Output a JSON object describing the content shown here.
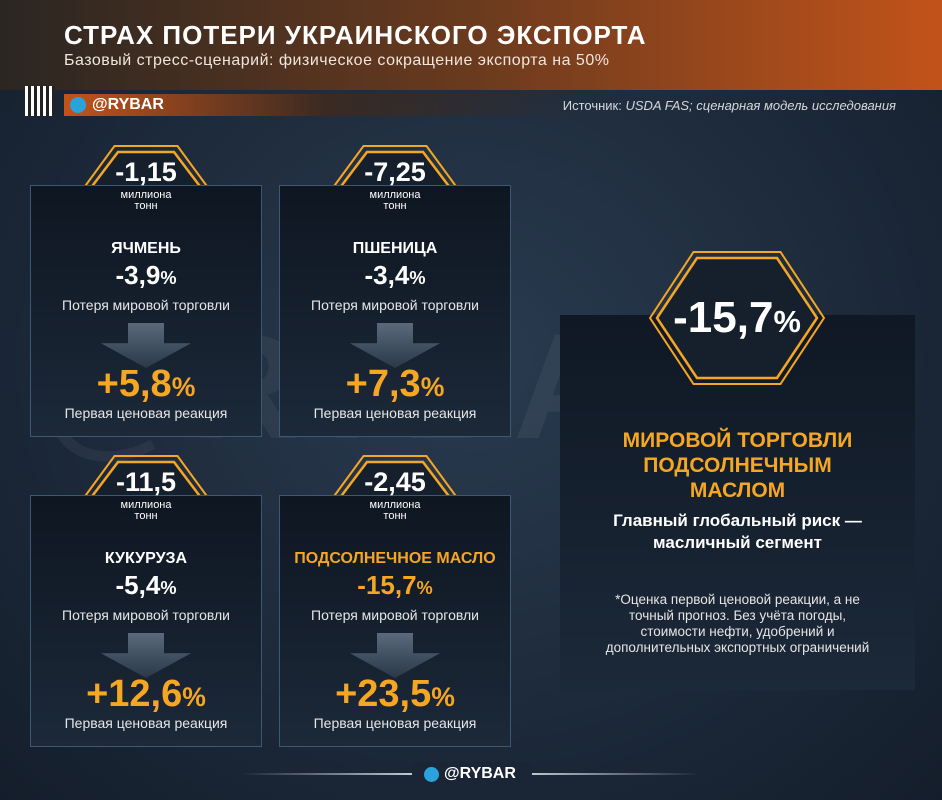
{
  "header": {
    "title": "СТРАХ ПОТЕРИ УКРАИНСКОГО ЭКСПОРТА",
    "subtitle": "Базовый стресс-сценарий: физическое сокращение экспорта на 50%"
  },
  "brand": "@RYBAR",
  "source_label": "Источник:",
  "source": "USDA FAS; сценарная модель исследования",
  "cards": [
    {
      "volume": "-1,15",
      "unit": "миллиона тонн",
      "name": "ЯЧМЕНЬ",
      "trade_value": "-3,9",
      "trade_unit": "%",
      "trade_label": "Потеря мировой торговли",
      "price_value": "+5,8",
      "price_unit": "%",
      "price_label": "Первая ценовая реакция"
    },
    {
      "volume": "-7,25",
      "unit": "миллиона тонн",
      "name": "ПШЕНИЦА",
      "trade_value": "-3,4",
      "trade_unit": "%",
      "trade_label": "Потеря мировой торговли",
      "price_value": "+7,3",
      "price_unit": "%",
      "price_label": "Первая ценовая реакция"
    },
    {
      "volume": "-11,5",
      "unit": "миллиона тонн",
      "name": "КУКУРУЗА",
      "trade_value": "-5,4",
      "trade_unit": "%",
      "trade_label": "Потеря мировой торговли",
      "price_value": "+12,6",
      "price_unit": "%",
      "price_label": "Первая ценовая реакция"
    },
    {
      "volume": "-2,45",
      "unit": "миллиона тонн",
      "name": "ПОДСОЛНЕЧНОЕ МАСЛО",
      "trade_value": "-15,7",
      "trade_unit": "%",
      "trade_label": "Потеря мировой торговли",
      "price_value": "+23,5",
      "price_unit": "%",
      "price_label": "Первая ценовая реакция",
      "color": "#f5a623"
    }
  ],
  "panel": {
    "value": "-15,7",
    "unit": "%",
    "title": "МИРОВОЙ ТОРГОВЛИ ПОДСОЛНЕЧНЫМ МАСЛОМ",
    "subtitle": "Главный глобальный риск — масличный сегмент",
    "note": "*Оценка первой ценовой реакции, а не точный прогноз. Без учёта погоды, стоимости нефти, удобрений и дополнительных экспортных ограничений"
  },
  "footer": {
    "brand": "@RYBAR"
  }
}
